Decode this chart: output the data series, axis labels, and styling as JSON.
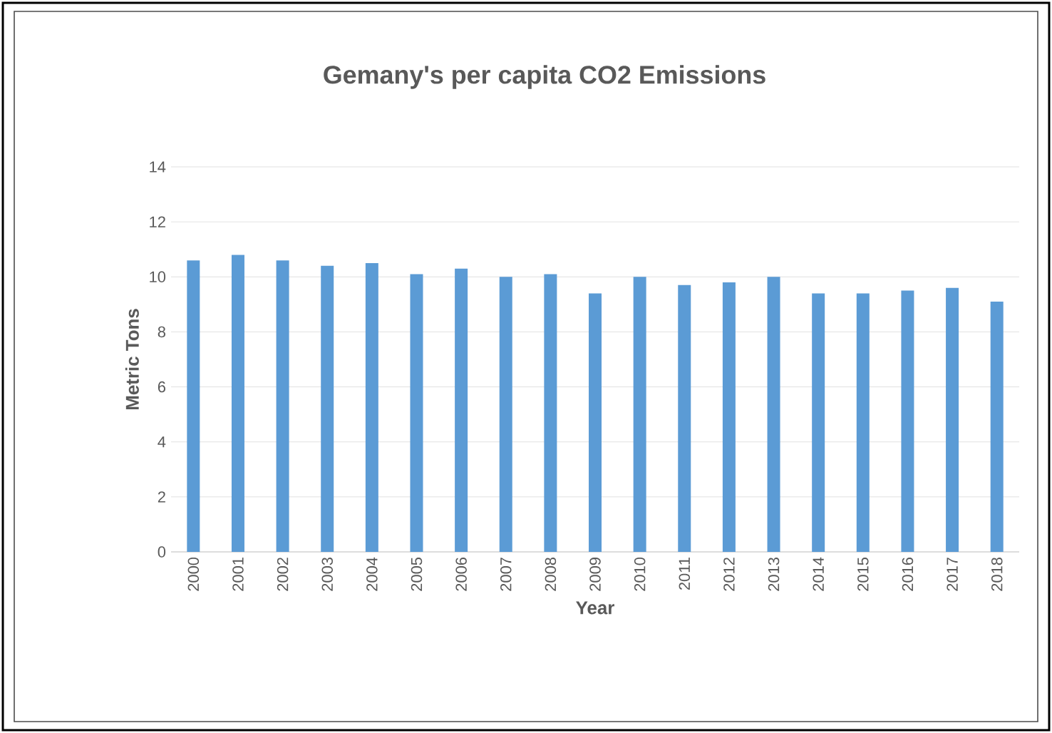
{
  "chart_data": {
    "type": "bar",
    "title": "Gemany's per capita CO2 Emissions",
    "xlabel": "Year",
    "ylabel": "Metric Tons",
    "categories": [
      "2000",
      "2001",
      "2002",
      "2003",
      "2004",
      "2005",
      "2006",
      "2007",
      "2008",
      "2009",
      "2010",
      "2011",
      "2012",
      "2013",
      "2014",
      "2015",
      "2016",
      "2017",
      "2018"
    ],
    "values": [
      10.6,
      10.8,
      10.6,
      10.4,
      10.5,
      10.1,
      10.3,
      10.0,
      10.1,
      9.4,
      10.0,
      9.7,
      9.8,
      10.0,
      9.4,
      9.4,
      9.5,
      9.6,
      9.1
    ],
    "color": "#5b9bd5",
    "ylim": [
      0,
      14
    ],
    "yticks": [
      0,
      2,
      4,
      6,
      8,
      10,
      12,
      14
    ],
    "grid": "y"
  }
}
